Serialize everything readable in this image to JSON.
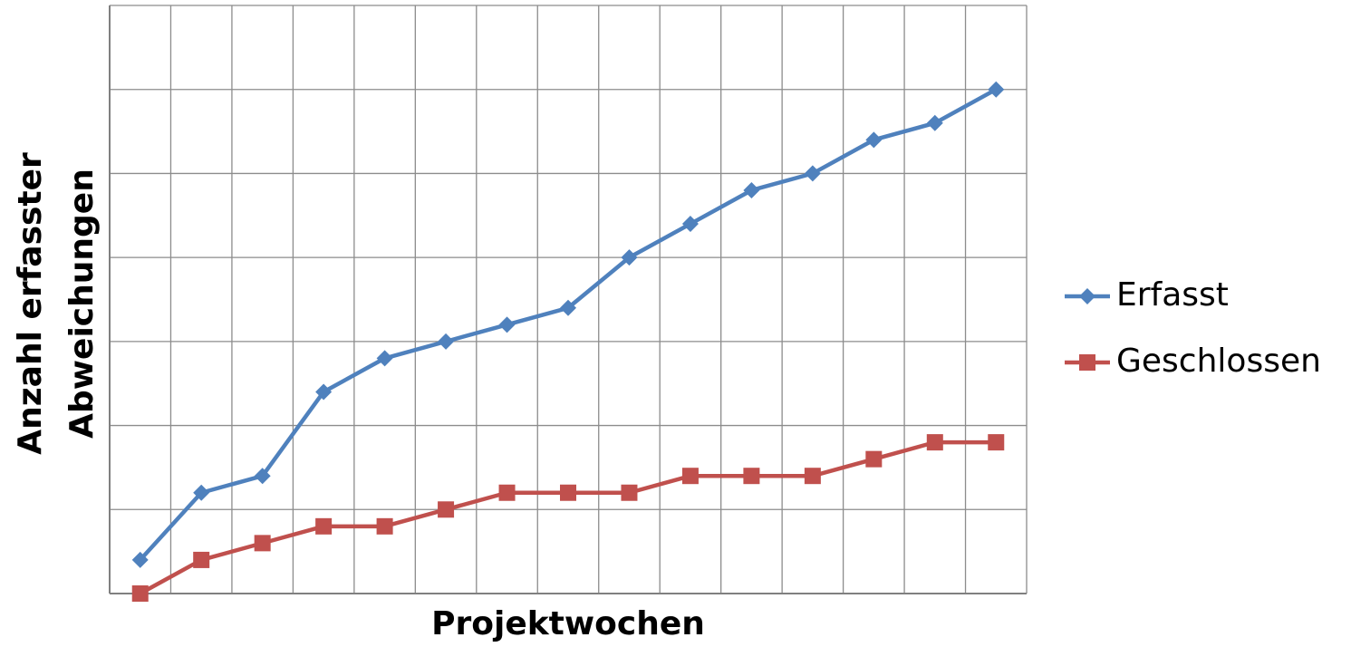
{
  "chart_data": {
    "type": "line",
    "xlabel": "Projektwochen",
    "ylabel": [
      "Anzahl erfasster",
      "Abweichungen"
    ],
    "categories": [
      null,
      null,
      null,
      null,
      null,
      null,
      null,
      null,
      null,
      null,
      null,
      null,
      null,
      null,
      null
    ],
    "series": [
      {
        "name": "Erfasst",
        "color": "#4f81bd",
        "marker": "diamond",
        "values": [
          0.4,
          1.2,
          1.4,
          2.4,
          2.8,
          3.0,
          3.2,
          3.4,
          4.0,
          4.4,
          4.8,
          5.0,
          5.4,
          5.6,
          6.0
        ]
      },
      {
        "name": "Geschlossen",
        "color": "#c0504d",
        "marker": "square",
        "values": [
          0,
          0.4,
          0.6,
          0.8,
          0.8,
          1.0,
          1.2,
          1.2,
          1.2,
          1.4,
          1.4,
          1.4,
          1.6,
          1.8,
          1.8
        ]
      }
    ],
    "ylim": [
      0,
      7
    ],
    "yticks": [
      0,
      1,
      2,
      3,
      4,
      5,
      6,
      7
    ],
    "grid": true,
    "legend": "right"
  }
}
